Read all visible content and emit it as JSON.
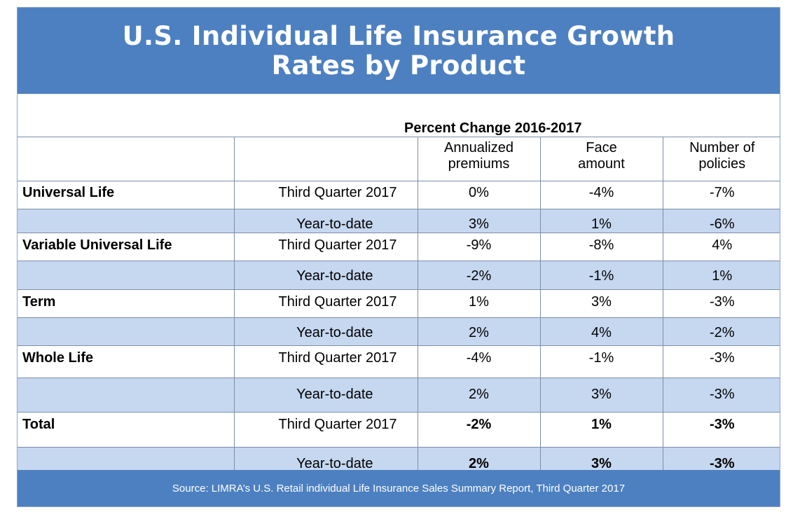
{
  "chart_data": {
    "type": "table",
    "title_lines": [
      "U.S. Individual Life Insurance Growth",
      "Rates by Product"
    ],
    "subtitle": "Percent Change 2016-2017",
    "columns": [
      [
        "Annualized",
        "premiums"
      ],
      [
        "Face",
        "amount"
      ],
      [
        "Number of",
        "policies"
      ]
    ],
    "rows": [
      {
        "product": "Universal Life",
        "period": "Third Quarter 2017",
        "values": [
          "0%",
          "-4%",
          "-7%"
        ],
        "bold": false
      },
      {
        "product": "",
        "period": "Year-to-date",
        "values": [
          "3%",
          "1%",
          "-6%"
        ],
        "bold": false
      },
      {
        "product": "Variable Universal Life",
        "period": "Third Quarter 2017",
        "values": [
          "-9%",
          "-8%",
          "4%"
        ],
        "bold": false
      },
      {
        "product": "",
        "period": "Year-to-date",
        "values": [
          "-2%",
          "-1%",
          "1%"
        ],
        "bold": false
      },
      {
        "product": "Term",
        "period": "Third Quarter 2017",
        "values": [
          "1%",
          "3%",
          "-3%"
        ],
        "bold": false
      },
      {
        "product": "",
        "period": "Year-to-date",
        "values": [
          "2%",
          "4%",
          "-2%"
        ],
        "bold": false
      },
      {
        "product": "Whole Life",
        "period": "Third Quarter 2017",
        "values": [
          "-4%",
          "-1%",
          "-3%"
        ],
        "bold": false
      },
      {
        "product": "",
        "period": "Year-to-date",
        "values": [
          "2%",
          "3%",
          "-3%"
        ],
        "bold": false
      },
      {
        "product": "Total",
        "period": "Third Quarter 2017",
        "values": [
          "-2%",
          "1%",
          "-3%"
        ],
        "bold": true
      },
      {
        "product": "",
        "period": "Year-to-date",
        "values": [
          "2%",
          "3%",
          "-3%"
        ],
        "bold": true
      }
    ],
    "source": "Source: LIMRA’s U.S. Retail individual Life Insurance Sales Summary Report, Third Quarter 2017"
  },
  "colors": {
    "header_blue": "#4d80c1",
    "row_alt": "#c6d7f0",
    "grid": "#7d8ea6"
  }
}
